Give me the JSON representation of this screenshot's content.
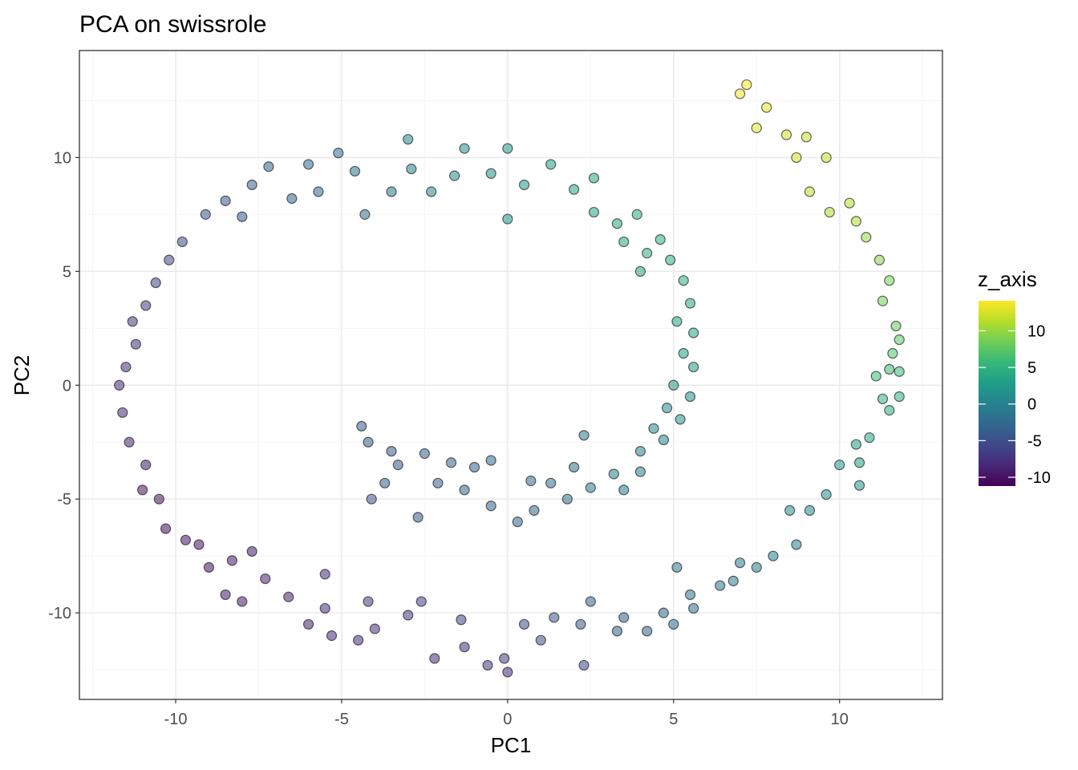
{
  "chart_data": {
    "type": "scatter",
    "title": "PCA on swissrole",
    "xlabel": "PC1",
    "ylabel": "PC2",
    "xlim": [
      -12.9,
      13.1
    ],
    "ylim": [
      -13.8,
      14.7
    ],
    "xticks": [
      -10,
      -5,
      0,
      5,
      10
    ],
    "yticks": [
      -10,
      -5,
      0,
      5,
      10
    ],
    "xtick_labels": [
      "-10",
      "-5",
      "0",
      "5",
      "10"
    ],
    "ytick_labels": [
      "-10",
      "-5",
      "0",
      "5",
      "10"
    ],
    "grid": true,
    "legend": {
      "title": "z_axis",
      "placement": "right",
      "type": "colorbar",
      "range": [
        -11.2,
        14.1
      ],
      "ticks": [
        10,
        5,
        0,
        -5,
        -10
      ],
      "tick_labels": [
        "10",
        "5",
        "0",
        "-5",
        "-10"
      ],
      "palette": [
        "#440154",
        "#482878",
        "#3e4989",
        "#31688e",
        "#26828e",
        "#1f9e89",
        "#35b779",
        "#6ece58",
        "#b5de2b",
        "#fde725"
      ]
    },
    "points_note": "representative sample",
    "points": [
      [
        7.2,
        13.2,
        14
      ],
      [
        7,
        12.8,
        13.5
      ],
      [
        7.8,
        12.2,
        13
      ],
      [
        7.5,
        11.3,
        13
      ],
      [
        8.4,
        11,
        12.5
      ],
      [
        9,
        10.9,
        12
      ],
      [
        9.6,
        10,
        12
      ],
      [
        8.7,
        10,
        12.5
      ],
      [
        9.1,
        8.5,
        11.5
      ],
      [
        9.7,
        7.6,
        11
      ],
      [
        10.3,
        8,
        11
      ],
      [
        10.5,
        7.2,
        11
      ],
      [
        10.8,
        6.5,
        10
      ],
      [
        11.2,
        5.5,
        9.5
      ],
      [
        11.5,
        4.6,
        9
      ],
      [
        11.3,
        3.7,
        8.5
      ],
      [
        11.7,
        2.6,
        8
      ],
      [
        11.8,
        2,
        7.5
      ],
      [
        11.6,
        1.4,
        7
      ],
      [
        11.5,
        0.7,
        6
      ],
      [
        11.8,
        0.6,
        6
      ],
      [
        11.1,
        0.4,
        6
      ],
      [
        11.3,
        -0.6,
        5
      ],
      [
        11.8,
        -0.5,
        5
      ],
      [
        11.5,
        -1.1,
        4.5
      ],
      [
        10.9,
        -2.3,
        3.5
      ],
      [
        10.5,
        -2.6,
        3
      ],
      [
        10.6,
        -3.4,
        3
      ],
      [
        10,
        -3.5,
        2.5
      ],
      [
        10.6,
        -4.4,
        2
      ],
      [
        9.6,
        -4.8,
        1.5
      ],
      [
        9.1,
        -5.5,
        1
      ],
      [
        8.5,
        -5.5,
        1
      ],
      [
        8.7,
        -7,
        0
      ],
      [
        8,
        -7.5,
        0
      ],
      [
        7.5,
        -8,
        -0.5
      ],
      [
        7,
        -7.8,
        -0.5
      ],
      [
        6.8,
        -8.6,
        -1
      ],
      [
        6.4,
        -8.8,
        -1.5
      ],
      [
        5.5,
        -9.2,
        -1.5
      ],
      [
        5.1,
        -8,
        -1
      ],
      [
        5.6,
        -9.8,
        -2
      ],
      [
        5,
        -10.5,
        -2.5
      ],
      [
        4.2,
        -10.8,
        -3
      ],
      [
        4.7,
        -10,
        -2.5
      ],
      [
        3.3,
        -10.8,
        -3.5
      ],
      [
        3.5,
        -10.2,
        -3
      ],
      [
        2.5,
        -9.5,
        -3
      ],
      [
        2.2,
        -10.5,
        -4
      ],
      [
        2.3,
        -12.3,
        -6
      ],
      [
        1.4,
        -10.2,
        -4
      ],
      [
        1.0,
        -11.2,
        -5
      ],
      [
        0.5,
        -10.5,
        -5
      ],
      [
        -0.1,
        -12,
        -6.5
      ],
      [
        0,
        -12.6,
        -8
      ],
      [
        -0.6,
        -12.3,
        -7
      ],
      [
        -1.4,
        -10.3,
        -6
      ],
      [
        -1.3,
        -11.5,
        -7.5
      ],
      [
        -2.2,
        -12,
        -8
      ],
      [
        -2.6,
        -9.5,
        -6.5
      ],
      [
        -3,
        -10.1,
        -6.5
      ],
      [
        -4,
        -10.7,
        -7.5
      ],
      [
        -4.2,
        -9.5,
        -7
      ],
      [
        -4.5,
        -11.2,
        -8
      ],
      [
        -5.3,
        -11,
        -8.5
      ],
      [
        -5.5,
        -9.8,
        -8
      ],
      [
        -5.5,
        -8.3,
        -8
      ],
      [
        -6,
        -10.5,
        -9
      ],
      [
        -6.6,
        -9.3,
        -9
      ],
      [
        -7.3,
        -8.5,
        -9
      ],
      [
        -7.7,
        -7.3,
        -9.5
      ],
      [
        -8,
        -9.5,
        -9.5
      ],
      [
        -8.5,
        -9.2,
        -9.5
      ],
      [
        -8.3,
        -7.7,
        -9.5
      ],
      [
        -9,
        -8,
        -10
      ],
      [
        -9.3,
        -7,
        -10
      ],
      [
        -9.7,
        -6.8,
        -10
      ],
      [
        -10.3,
        -6.3,
        -10.5
      ],
      [
        -10.5,
        -5,
        -10
      ],
      [
        -11,
        -4.6,
        -10
      ],
      [
        -10.9,
        -3.5,
        -9.5
      ],
      [
        -11.4,
        -2.5,
        -9
      ],
      [
        -11.6,
        -1.2,
        -8.5
      ],
      [
        -11.7,
        0,
        -8
      ],
      [
        -11.5,
        0.8,
        -8
      ],
      [
        -11.2,
        1.8,
        -7.5
      ],
      [
        -11.3,
        2.8,
        -7
      ],
      [
        -10.9,
        3.5,
        -6.5
      ],
      [
        -10.6,
        4.5,
        -6
      ],
      [
        -10.2,
        5.5,
        -5.5
      ],
      [
        -9.8,
        6.3,
        -5
      ],
      [
        -9.1,
        7.5,
        -4.5
      ],
      [
        -8.5,
        8.1,
        -4
      ],
      [
        -8,
        7.4,
        -4
      ],
      [
        -7.7,
        8.8,
        -3.5
      ],
      [
        -7.2,
        9.6,
        -3
      ],
      [
        -6.5,
        8.2,
        -3
      ],
      [
        -6,
        9.7,
        -2.5
      ],
      [
        -5.7,
        8.5,
        -2.5
      ],
      [
        -5.1,
        10.2,
        -2
      ],
      [
        -4.6,
        9.4,
        -1.5
      ],
      [
        -4.3,
        7.5,
        -2
      ],
      [
        -3.5,
        8.5,
        -1
      ],
      [
        -3,
        10.8,
        0
      ],
      [
        -2.9,
        9.5,
        0
      ],
      [
        -2.3,
        8.5,
        0.5
      ],
      [
        -1.6,
        9.2,
        1
      ],
      [
        -1.3,
        10.4,
        1.5
      ],
      [
        -0.5,
        9.3,
        2
      ],
      [
        0,
        10.4,
        2.5
      ],
      [
        0.5,
        8.8,
        2.5
      ],
      [
        0,
        7.3,
        2
      ],
      [
        1.3,
        9.7,
        3
      ],
      [
        2,
        8.6,
        3.5
      ],
      [
        2.6,
        7.6,
        3.5
      ],
      [
        2.6,
        9.1,
        4
      ],
      [
        3.3,
        7.1,
        4
      ],
      [
        3.9,
        7.5,
        4.5
      ],
      [
        3.5,
        6.3,
        4
      ],
      [
        4.2,
        5.8,
        4.5
      ],
      [
        4.6,
        6.4,
        5
      ],
      [
        4.9,
        5.5,
        4.5
      ],
      [
        4,
        5,
        4
      ],
      [
        5.3,
        4.6,
        4.5
      ],
      [
        5.5,
        3.6,
        4
      ],
      [
        5.1,
        2.8,
        3.5
      ],
      [
        5.6,
        2.3,
        3.5
      ],
      [
        5.3,
        1.4,
        3
      ],
      [
        5.6,
        0.8,
        2.5
      ],
      [
        5,
        0,
        2
      ],
      [
        5.5,
        -0.5,
        1.5
      ],
      [
        4.8,
        -1,
        1
      ],
      [
        5.2,
        -1.5,
        1
      ],
      [
        4.4,
        -1.9,
        0.5
      ],
      [
        4.7,
        -2.4,
        0.5
      ],
      [
        4,
        -2.9,
        0
      ],
      [
        4,
        -3.8,
        -0.5
      ],
      [
        3.2,
        -3.9,
        0
      ],
      [
        3.5,
        -4.6,
        -0.5
      ],
      [
        2.5,
        -4.5,
        -1
      ],
      [
        2.3,
        -2.2,
        -1
      ],
      [
        2.0,
        -3.6,
        -1.5
      ],
      [
        1.8,
        -5,
        -2
      ],
      [
        1.3,
        -4.3,
        -2
      ],
      [
        0.8,
        -5.5,
        -2.5
      ],
      [
        0.3,
        -6,
        -3
      ],
      [
        -0.5,
        -5.3,
        -3
      ],
      [
        -0.5,
        -3.3,
        -2.5
      ],
      [
        -1.3,
        -4.6,
        -3
      ],
      [
        -1.7,
        -3.4,
        -3
      ],
      [
        -2.1,
        -4.3,
        -3.5
      ],
      [
        -2.5,
        -3,
        -3.5
      ],
      [
        -2.7,
        -5.8,
        -4
      ],
      [
        -3.3,
        -3.5,
        -4
      ],
      [
        -3.7,
        -4.3,
        -4
      ],
      [
        -4.1,
        -5,
        -4.5
      ],
      [
        -4.2,
        -2.5,
        -4
      ],
      [
        -4.4,
        -1.8,
        -4
      ],
      [
        -3.5,
        -2.9,
        -4
      ],
      [
        -1,
        -3.6,
        -3
      ],
      [
        0.7,
        -4.2,
        -2.5
      ]
    ]
  }
}
